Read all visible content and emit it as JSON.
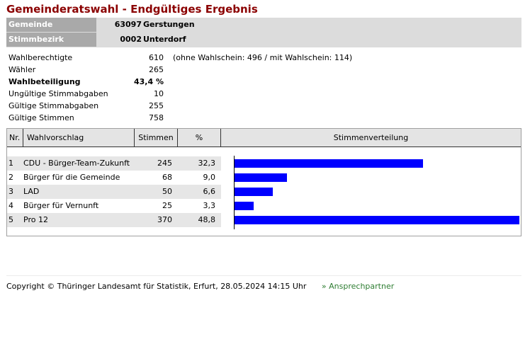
{
  "title": "Gemeinderatswahl - Endgültiges Ergebnis",
  "identification": {
    "gemeinde_label": "Gemeinde",
    "gemeinde_number": "63097",
    "gemeinde_name": "Gerstungen",
    "bezirk_label": "Stimmbezirk",
    "bezirk_number": "0002",
    "bezirk_name": "Unterdorf"
  },
  "stats": [
    {
      "label": "Wahlberechtigte",
      "value": "610",
      "note": "(ohne Wahlschein: 496 / mit Wahlschein: 114)"
    },
    {
      "label": "Wähler",
      "value": "265"
    },
    {
      "label": "Wahlbeteiligung",
      "value": "43,4 %",
      "bold": true
    },
    {
      "label": "Ungültige Stimmabgaben",
      "value": "10"
    },
    {
      "label": "Gültige Stimmabgaben",
      "value": "255"
    },
    {
      "label": "Gültige Stimmen",
      "value": "758"
    }
  ],
  "table": {
    "headers": {
      "nr": "Nr.",
      "wahlvorschlag": "Wahlvorschlag",
      "stimmen": "Stimmen",
      "pct": "%",
      "verteilung": "Stimmenverteilung"
    },
    "rows": [
      {
        "nr": "1",
        "name": "CDU - Bürger-Team-Zukunft",
        "stimmen": "245",
        "pct": "32,3",
        "share": 32.3
      },
      {
        "nr": "2",
        "name": "Bürger für die Gemeinde",
        "stimmen": "68",
        "pct": "9,0",
        "share": 9.0
      },
      {
        "nr": "3",
        "name": "LAD",
        "stimmen": "50",
        "pct": "6,6",
        "share": 6.6
      },
      {
        "nr": "4",
        "name": "Bürger für Vernunft",
        "stimmen": "25",
        "pct": "3,3",
        "share": 3.3
      },
      {
        "nr": "5",
        "name": "Pro 12",
        "stimmen": "370",
        "pct": "48,8",
        "share": 48.8
      }
    ],
    "bar_color": "#0000ff"
  },
  "footer": {
    "copyright": "Copyright © Thüringer Landesamt für Statistik, Erfurt, 28.05.2024 14:15 Uhr",
    "link": "» Ansprechpartner"
  }
}
